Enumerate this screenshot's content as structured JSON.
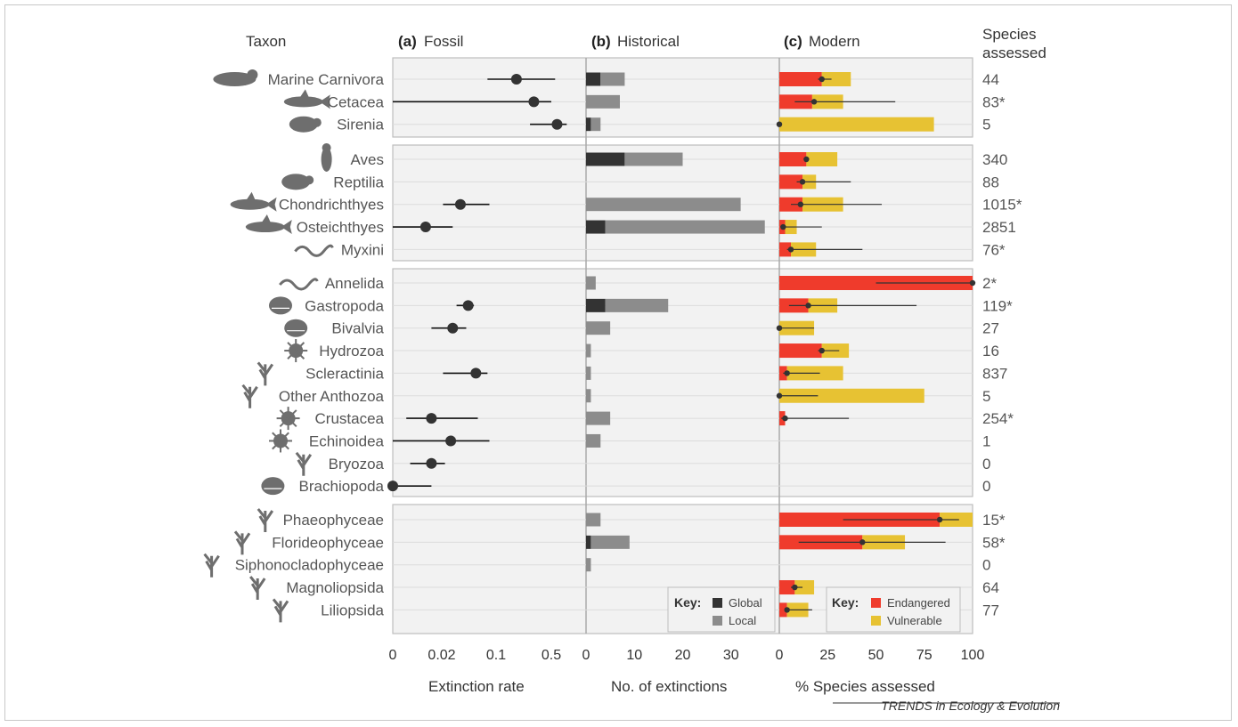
{
  "chart_data": {
    "type": "panel-bar-dot",
    "header": {
      "taxon": "Taxon",
      "species_assessed": [
        "Species",
        "assessed"
      ]
    },
    "panels": [
      {
        "letter": "(a)",
        "title": "Fossil",
        "xlabel": "Extinction rate",
        "ticks": [
          "0",
          "0.02",
          "0.1",
          "0.5"
        ]
      },
      {
        "letter": "(b)",
        "title": "Historical",
        "xlabel": "No. of extinctions",
        "ticks": [
          "0",
          "10",
          "20",
          "30"
        ]
      },
      {
        "letter": "(c)",
        "title": "Modern",
        "xlabel": "% Species assessed",
        "ticks": [
          "0",
          "25",
          "50",
          "75",
          "100"
        ]
      }
    ],
    "groups": [
      [
        "Marine Carnivora",
        "Cetacea",
        "Sirenia"
      ],
      [
        "Aves",
        "Reptilia",
        "Chondrichthyes",
        "Osteichthyes",
        "Myxini"
      ],
      [
        "Annelida",
        "Gastropoda",
        "Bivalvia",
        "Hydrozoa",
        "Scleractinia",
        "Other Anthozoa",
        "Crustacea",
        "Echinoidea",
        "Bryozoa",
        "Brachiopoda"
      ],
      [
        "Phaeophyceae",
        "Florideophyceae",
        "Siphonocladophyceae",
        "Magnoliopsida",
        "Liliopsida"
      ]
    ],
    "taxa": [
      {
        "name": "Marine Carnivora",
        "icon": "seal-icon",
        "fossil": {
          "rate_pos": 0.64,
          "lo_pos": 0.49,
          "hi_pos": 0.84
        },
        "global": 3,
        "local": 5,
        "endangered": 22,
        "vulnerable": 15,
        "combined": 22,
        "ci": [
          20,
          27
        ],
        "assessed": "44"
      },
      {
        "name": "Cetacea",
        "icon": "dolphin-icon",
        "fossil": {
          "rate_pos": 0.73,
          "lo_pos": 0.0,
          "hi_pos": 0.82
        },
        "global": 0,
        "local": 7,
        "endangered": 17,
        "vulnerable": 16,
        "combined": 18,
        "ci": [
          8,
          60
        ],
        "assessed": "83*"
      },
      {
        "name": "Sirenia",
        "icon": "manatee-icon",
        "fossil": {
          "rate_pos": 0.85,
          "lo_pos": 0.71,
          "hi_pos": 0.9
        },
        "global": 1,
        "local": 2,
        "endangered": 0,
        "vulnerable": 80,
        "combined": 0,
        "ci": [
          0,
          0
        ],
        "assessed": "5"
      },
      {
        "name": "Aves",
        "icon": "penguin-icon",
        "fossil": null,
        "global": 8,
        "local": 12,
        "endangered": 14,
        "vulnerable": 16,
        "combined": 14,
        "ci": [
          13,
          15
        ],
        "assessed": "340"
      },
      {
        "name": "Reptilia",
        "icon": "turtle-icon",
        "fossil": null,
        "global": 0,
        "local": 0,
        "endangered": 12,
        "vulnerable": 7,
        "combined": 12,
        "ci": [
          9,
          37
        ],
        "assessed": "88"
      },
      {
        "name": "Chondrichthyes",
        "icon": "shark-icon",
        "fossil": {
          "rate_pos": 0.35,
          "lo_pos": 0.26,
          "hi_pos": 0.5
        },
        "global": 0,
        "local": 32,
        "endangered": 12,
        "vulnerable": 21,
        "combined": 11,
        "ci": [
          6,
          53
        ],
        "assessed": "1015*"
      },
      {
        "name": "Osteichthyes",
        "icon": "fish-icon",
        "fossil": {
          "rate_pos": 0.17,
          "lo_pos": 0.0,
          "hi_pos": 0.31
        },
        "global": 4,
        "local": 33,
        "endangered": 3,
        "vulnerable": 6,
        "combined": 2,
        "ci": [
          1,
          22
        ],
        "assessed": "2851"
      },
      {
        "name": "Myxini",
        "icon": "hagfish-icon",
        "fossil": null,
        "global": 0,
        "local": 0,
        "endangered": 6,
        "vulnerable": 13,
        "combined": 6,
        "ci": [
          4,
          43
        ],
        "assessed": "76*"
      },
      {
        "name": "Annelida",
        "icon": "worm-icon",
        "fossil": null,
        "global": 0,
        "local": 2,
        "endangered": 100,
        "vulnerable": 0,
        "combined": 100,
        "ci": [
          50,
          100
        ],
        "assessed": "2*"
      },
      {
        "name": "Gastropoda",
        "icon": "nautilus-icon",
        "fossil": {
          "rate_pos": 0.39,
          "lo_pos": 0.33,
          "hi_pos": 0.42
        },
        "global": 4,
        "local": 13,
        "endangered": 15,
        "vulnerable": 15,
        "combined": 15,
        "ci": [
          5,
          71
        ],
        "assessed": "119*"
      },
      {
        "name": "Bivalvia",
        "icon": "clam-icon",
        "fossil": {
          "rate_pos": 0.31,
          "lo_pos": 0.2,
          "hi_pos": 0.38
        },
        "global": 0,
        "local": 5,
        "endangered": 0,
        "vulnerable": 18,
        "combined": 0,
        "ci": [
          0,
          18
        ],
        "assessed": "27"
      },
      {
        "name": "Hydrozoa",
        "icon": "hydrozoan-icon",
        "fossil": null,
        "global": 0,
        "local": 1,
        "endangered": 22,
        "vulnerable": 14,
        "combined": 22,
        "ci": [
          20,
          31
        ],
        "assessed": "16"
      },
      {
        "name": "Scleractinia",
        "icon": "coral-icon",
        "fossil": {
          "rate_pos": 0.43,
          "lo_pos": 0.26,
          "hi_pos": 0.49
        },
        "global": 0,
        "local": 1,
        "endangered": 4,
        "vulnerable": 29,
        "combined": 4,
        "ci": [
          2,
          21
        ],
        "assessed": "837"
      },
      {
        "name": "Other Anthozoa",
        "icon": "anemone-icon",
        "fossil": null,
        "global": 0,
        "local": 1,
        "endangered": 0,
        "vulnerable": 75,
        "combined": 0,
        "ci": [
          0,
          20
        ],
        "assessed": "5"
      },
      {
        "name": "Crustacea",
        "icon": "crab-icon",
        "fossil": {
          "rate_pos": 0.2,
          "lo_pos": 0.07,
          "hi_pos": 0.44
        },
        "global": 0,
        "local": 5,
        "endangered": 3,
        "vulnerable": 0,
        "combined": 3,
        "ci": [
          1,
          36
        ],
        "assessed": "254*"
      },
      {
        "name": "Echinoidea",
        "icon": "urchin-icon",
        "fossil": {
          "rate_pos": 0.3,
          "lo_pos": 0.0,
          "hi_pos": 0.5
        },
        "global": 0,
        "local": 3,
        "endangered": 0,
        "vulnerable": 0,
        "combined": null,
        "ci": null,
        "assessed": "1"
      },
      {
        "name": "Bryozoa",
        "icon": "bryozoan-icon",
        "fossil": {
          "rate_pos": 0.2,
          "lo_pos": 0.09,
          "hi_pos": 0.27
        },
        "global": 0,
        "local": 0,
        "endangered": 0,
        "vulnerable": 0,
        "combined": null,
        "ci": null,
        "assessed": "0"
      },
      {
        "name": "Brachiopoda",
        "icon": "brachiopod-icon",
        "fossil": {
          "rate_pos": 0.0,
          "lo_pos": 0.0,
          "hi_pos": 0.2
        },
        "global": 0,
        "local": 0,
        "endangered": 0,
        "vulnerable": 0,
        "combined": null,
        "ci": null,
        "assessed": "0"
      },
      {
        "name": "Phaeophyceae",
        "icon": "kelp-icon",
        "fossil": null,
        "global": 0,
        "local": 3,
        "endangered": 83,
        "vulnerable": 17,
        "combined": 83,
        "ci": [
          33,
          93
        ],
        "assessed": "15*"
      },
      {
        "name": "Florideophyceae",
        "icon": "red-alga-icon",
        "fossil": null,
        "global": 1,
        "local": 8,
        "endangered": 43,
        "vulnerable": 22,
        "combined": 43,
        "ci": [
          10,
          86
        ],
        "assessed": "58*"
      },
      {
        "name": "Siphonocladophyceae",
        "icon": "green-alga-icon",
        "fossil": null,
        "global": 0,
        "local": 1,
        "endangered": 0,
        "vulnerable": 0,
        "combined": null,
        "ci": null,
        "assessed": "0"
      },
      {
        "name": "Magnoliopsida",
        "icon": "mangrove-icon",
        "fossil": null,
        "global": 0,
        "local": 0,
        "endangered": 8,
        "vulnerable": 10,
        "combined": 8,
        "ci": [
          6,
          12
        ],
        "assessed": "64"
      },
      {
        "name": "Liliopsida",
        "icon": "seagrass-icon",
        "fossil": null,
        "global": 0,
        "local": 0,
        "endangered": 4,
        "vulnerable": 11,
        "combined": 4,
        "ci": [
          3,
          17
        ],
        "assessed": "77"
      }
    ],
    "keys": {
      "historical": {
        "label": "Key:",
        "items": [
          {
            "name": "Global",
            "color": "#333333"
          },
          {
            "name": "Local",
            "color": "#8c8c8c"
          }
        ]
      },
      "modern": {
        "label": "Key:",
        "items": [
          {
            "name": "Endangered",
            "color": "#ef3b2c"
          },
          {
            "name": "Vulnerable",
            "color": "#e7c233"
          }
        ]
      }
    },
    "xlim": {
      "historical": [
        0,
        40
      ],
      "modern": [
        0,
        100
      ]
    },
    "grid": true
  },
  "colors": {
    "panel_bg": "#f2f2f2",
    "gridline": "#dcdcdc",
    "label": "#555555",
    "icon": "#6e6e6e"
  },
  "footer": {
    "credit": "TRENDS in Ecology & Evolution"
  }
}
